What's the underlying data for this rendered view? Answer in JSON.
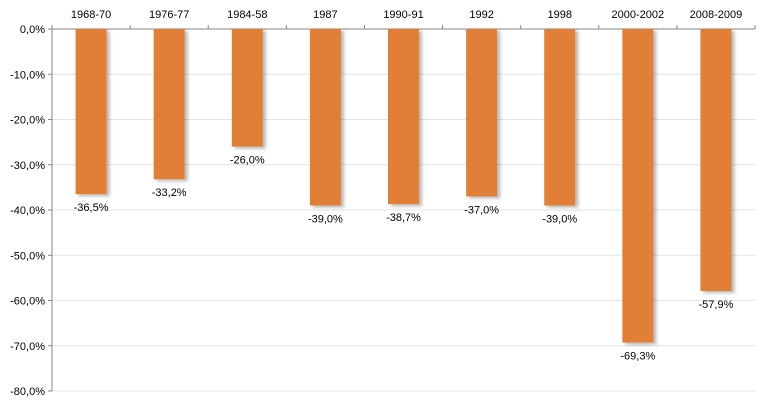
{
  "colors": {
    "bar": "#E07F36",
    "bar_shadow": "#C9C9C9",
    "axis": "#868686",
    "grid": "#E3E3E3"
  },
  "chart_data": {
    "type": "bar",
    "orientation": "vertical",
    "category_axis_position": "top",
    "categories": [
      "1968-70",
      "1976-77",
      "1984-58",
      "1987",
      "1990-91",
      "1992",
      "1998",
      "2000-2002",
      "2008-2009"
    ],
    "values": [
      -36.5,
      -33.2,
      -26.0,
      -39.0,
      -38.7,
      -37.0,
      -39.0,
      -69.3,
      -57.9
    ],
    "data_labels": [
      "-36,5%",
      "-33,2%",
      "-26,0%",
      "-39,0%",
      "-38,7%",
      "-37,0%",
      "-39,0%",
      "-69,3%",
      "-57,9%"
    ],
    "ylim": [
      -80,
      0
    ],
    "yticks": [
      0,
      -10,
      -20,
      -30,
      -40,
      -50,
      -60,
      -70,
      -80
    ],
    "ytick_labels": [
      "0,0%",
      "-10,0%",
      "-20,0%",
      "-30,0%",
      "-40,0%",
      "-50,0%",
      "-60,0%",
      "-70,0%",
      "-80,0%"
    ],
    "grid": true,
    "legend": "none",
    "title": "",
    "xlabel": "",
    "ylabel": ""
  }
}
